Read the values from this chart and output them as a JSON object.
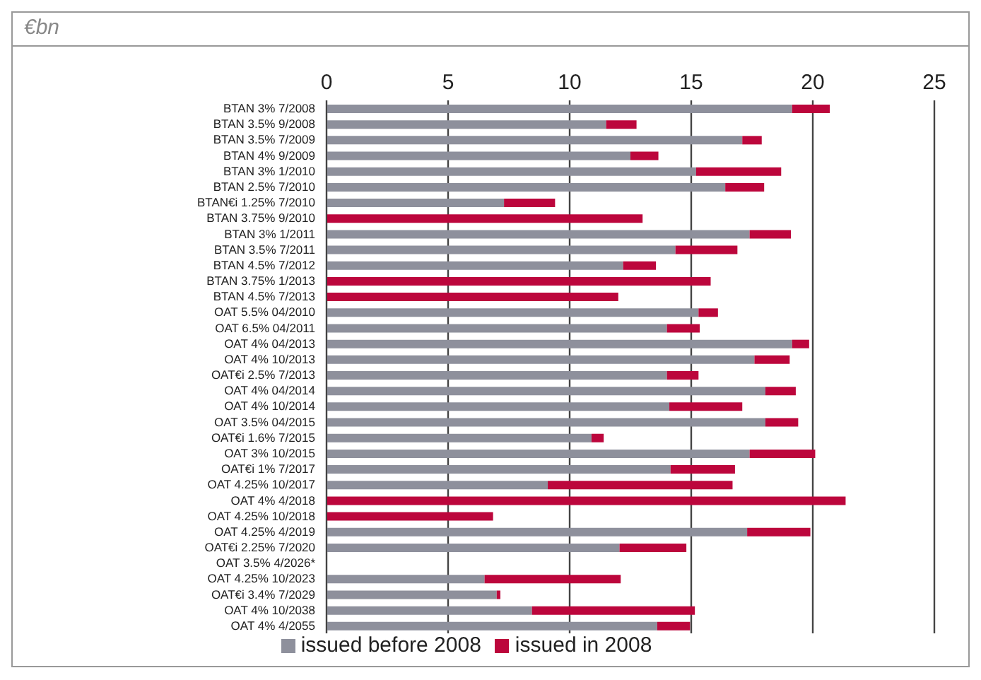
{
  "chart_data": {
    "type": "bar",
    "orientation": "horizontal",
    "stacked": true,
    "annotations": [
      "€bn"
    ],
    "categories": [
      "BTAN 3% 7/2008",
      "BTAN 3.5% 9/2008",
      "BTAN 3.5% 7/2009",
      "BTAN 4% 9/2009",
      "BTAN 3% 1/2010",
      "BTAN 2.5% 7/2010",
      "BTAN€i 1.25% 7/2010",
      "BTAN 3.75% 9/2010",
      "BTAN 3% 1/2011",
      "BTAN 3.5% 7/2011",
      "BTAN 4.5% 7/2012",
      "BTAN 3.75% 1/2013",
      "BTAN 4.5% 7/2013",
      "OAT 5.5% 04/2010",
      "OAT 6.5% 04/2011",
      "OAT 4% 04/2013",
      "OAT 4% 10/2013",
      "OAT€i 2.5% 7/2013",
      "OAT 4% 04/2014",
      "OAT 4% 10/2014",
      "OAT 3.5% 04/2015",
      "OAT€i 1.6% 7/2015",
      "OAT 3% 10/2015",
      "OAT€i 1% 7/2017",
      "OAT 4.25% 10/2017",
      "OAT 4% 4/2018",
      "OAT 4.25% 10/2018",
      "OAT 4.25% 4/2019",
      "OAT€i 2.25% 7/2020",
      "OAT 3.5% 4/2026*",
      "OAT 4.25% 10/2023",
      "OAT€i 3.4% 7/2029",
      "OAT 4% 10/2038",
      "OAT 4% 4/2055"
    ],
    "series": [
      {
        "name": "issued before 2008",
        "color": "#8e909c",
        "values": [
          19.15,
          11.5,
          17.1,
          12.5,
          15.2,
          16.4,
          7.3,
          0,
          17.4,
          14.35,
          12.2,
          0,
          0,
          15.3,
          14.0,
          19.15,
          17.6,
          14.0,
          18.05,
          14.1,
          18.05,
          10.9,
          17.4,
          14.15,
          9.1,
          0,
          0,
          17.3,
          12.05,
          null,
          6.5,
          7.0,
          8.45,
          13.6
        ]
      },
      {
        "name": "issued in 2008",
        "color": "#bc063c",
        "values": [
          1.55,
          1.25,
          0.8,
          1.15,
          3.5,
          1.6,
          2.1,
          13.0,
          1.7,
          2.55,
          1.35,
          15.8,
          12.0,
          0.8,
          1.35,
          0.7,
          1.45,
          1.3,
          1.25,
          3.0,
          1.35,
          0.5,
          2.7,
          2.65,
          7.6,
          21.35,
          6.85,
          2.6,
          2.75,
          null,
          5.6,
          0.15,
          6.7,
          1.35
        ]
      }
    ],
    "xlim": [
      0,
      25
    ],
    "xticks": [
      0,
      5,
      10,
      15,
      20,
      25
    ],
    "grid": "x",
    "legend": "bottom"
  }
}
